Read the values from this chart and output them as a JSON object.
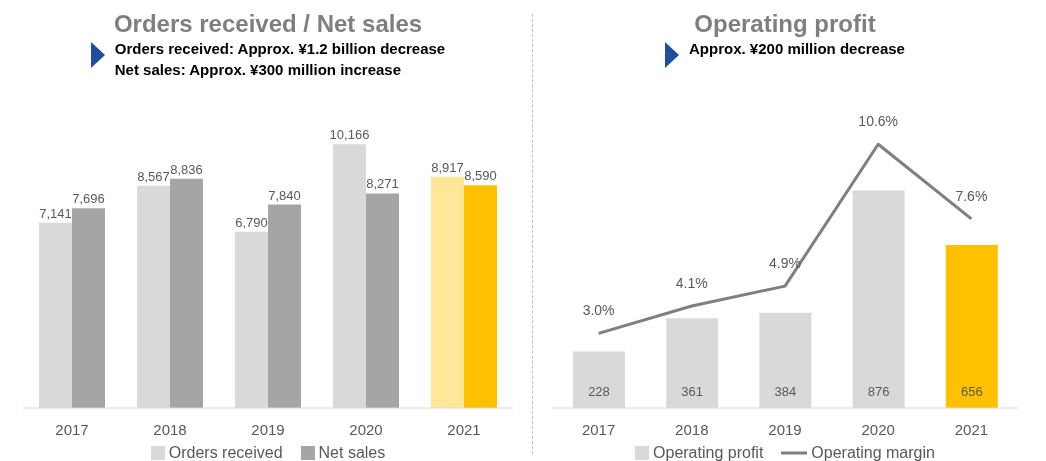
{
  "chart_data": [
    {
      "type": "bar",
      "title": "Orders received / Net sales",
      "annotations": [
        "Orders received: Approx. ¥1.2 billion decrease\nNet sales: Approx. ¥300 million increase"
      ],
      "categories": [
        "2017",
        "2018",
        "2019",
        "2020",
        "2021"
      ],
      "legend": "bottom",
      "series": [
        {
          "name": "Orders received",
          "color": "#d9d9d9",
          "colors": [
            "#d9d9d9",
            "#d9d9d9",
            "#d9d9d9",
            "#d9d9d9",
            "#ffe699"
          ],
          "values": [
            7141,
            8567,
            6790,
            10166,
            8917
          ],
          "value_labels": [
            "7,141",
            "8,567",
            "6,790",
            "10,166",
            "8,917"
          ]
        },
        {
          "name": "Net sales",
          "color": "#a5a5a5",
          "colors": [
            "#a5a5a5",
            "#a5a5a5",
            "#a5a5a5",
            "#a5a5a5",
            "#ffc000"
          ],
          "values": [
            7696,
            8836,
            7840,
            8271,
            8590
          ],
          "value_labels": [
            "7,696",
            "8,836",
            "7,840",
            "8,271",
            "8,590"
          ]
        }
      ]
    },
    {
      "type": "bar",
      "title": "Operating profit",
      "annotations": [
        "Approx. ¥200 million decrease"
      ],
      "categories": [
        "2017",
        "2018",
        "2019",
        "2020",
        "2021"
      ],
      "legend": "bottom",
      "series": [
        {
          "name": "Operating profit",
          "color": "#d9d9d9",
          "colors": [
            "#d9d9d9",
            "#d9d9d9",
            "#d9d9d9",
            "#d9d9d9",
            "#ffc000"
          ],
          "values": [
            228,
            361,
            384,
            876,
            656
          ],
          "value_labels": [
            "228",
            "361",
            "384",
            "876",
            "656"
          ]
        },
        {
          "name": "Operating margin",
          "type": "line",
          "axis": "y2",
          "color": "#7f7f7f",
          "values": [
            3.0,
            4.1,
            4.9,
            10.6,
            7.6
          ],
          "value_labels": [
            "3.0%",
            "4.1%",
            "4.9%",
            "10.6%",
            "7.6%"
          ]
        }
      ]
    }
  ]
}
